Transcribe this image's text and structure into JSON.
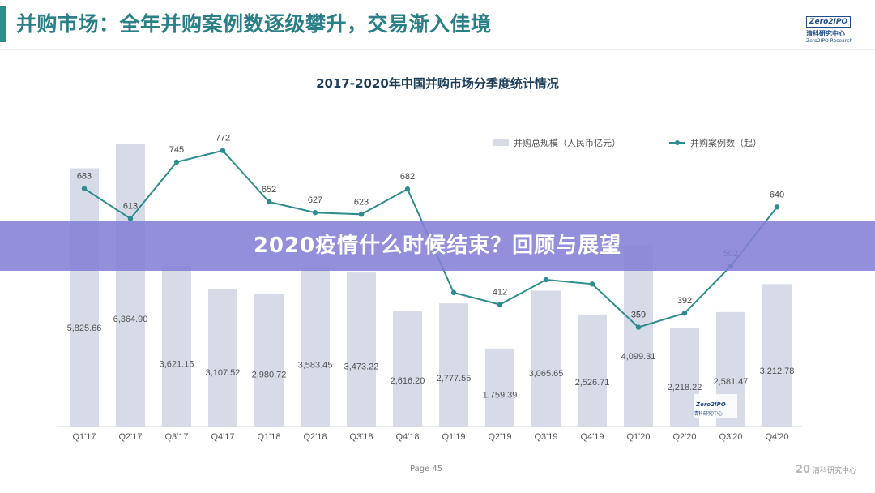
{
  "header": {
    "title": "并购市场：全年并购案例数逐级攀升，交易渐入佳境"
  },
  "logo": {
    "mark": "Zero2IPO",
    "name_cn": "清科研究中心",
    "name_en": "Zero2IPO Research"
  },
  "banner": {
    "text": "2020疫情什么时候结束？回顾与展望"
  },
  "footer": {
    "page_label": "Page",
    "page_number": "45",
    "logo_text": "清科研究中心",
    "logo_mark": "20"
  },
  "watermark": {
    "mark": "Zero2IPO",
    "name_cn": "清科研究中心"
  },
  "colors": {
    "bar": "#d7dbe7",
    "line": "#2e8c8f",
    "title": "#2b7f86",
    "banner": "#8480d6"
  },
  "chart_data": {
    "type": "bar",
    "title": "2017-2020年中国并购市场分季度统计情况",
    "categories": [
      "Q1'17",
      "Q2'17",
      "Q3'17",
      "Q4'17",
      "Q1'18",
      "Q2'18",
      "Q3'18",
      "Q4'18",
      "Q1'19",
      "Q2'19",
      "Q3'19",
      "Q4'19",
      "Q1'20",
      "Q2'20",
      "Q3'20",
      "Q4'20"
    ],
    "series": [
      {
        "name": "并购总规模（人民币亿元）",
        "type": "bar",
        "values": [
          5825.66,
          6364.9,
          3621.15,
          3107.52,
          2980.72,
          3583.45,
          3473.22,
          2616.2,
          2777.55,
          1759.39,
          3065.65,
          2526.71,
          4099.31,
          2218.22,
          2581.47,
          3212.78
        ],
        "labels": [
          "5,825.66",
          "6,364.90",
          "3,621.15",
          "3,107.52",
          "2,980.72",
          "3,583.45",
          "3,473.22",
          "2,616.20",
          "2,777.55",
          "1,759.39",
          "3,065.65",
          "2,526.71",
          "4,099.31",
          "2,218.22",
          "2,581.47",
          "3,212.78"
        ]
      },
      {
        "name": "并购案例数（起）",
        "type": "line",
        "values": [
          683,
          613,
          745,
          772,
          652,
          627,
          623,
          682,
          440,
          412,
          470,
          460,
          359,
          392,
          502,
          640
        ],
        "labels": [
          "683",
          "613",
          "745",
          "772",
          "652",
          "627",
          "623",
          "682",
          "",
          "412",
          "",
          "",
          "359",
          "392",
          "502",
          "640"
        ]
      }
    ],
    "legend_position": "top-right",
    "grid": false,
    "bar_ylim": [
      0,
      7000
    ],
    "line_ylim": [
      0,
      1100
    ]
  }
}
